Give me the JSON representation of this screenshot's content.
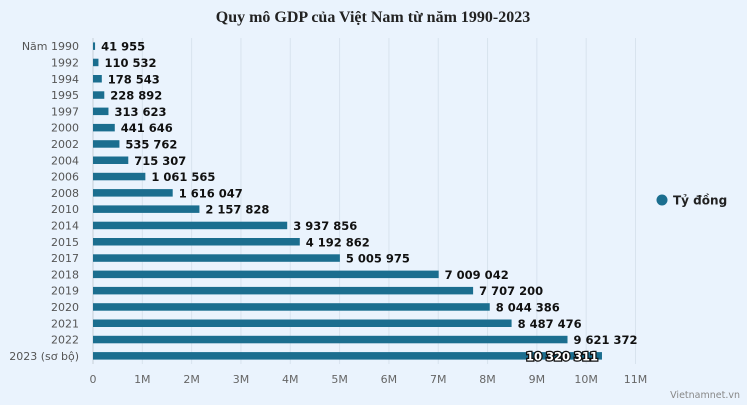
{
  "chart_data": {
    "type": "bar",
    "orientation": "horizontal",
    "title": "Quy mô GDP của Việt Nam từ năm 1990-2023",
    "xlabel": "",
    "ylabel": "",
    "categories": [
      "Năm 1990",
      "1992",
      "1994",
      "1995",
      "1997",
      "2000",
      "2002",
      "2004",
      "2006",
      "2008",
      "2010",
      "2014",
      "2015",
      "2017",
      "2018",
      "2019",
      "2020",
      "2021",
      "2022",
      "2023 (sơ bộ)"
    ],
    "series": [
      {
        "name": "Tỷ đồng",
        "color": "#1b6e8f",
        "values": [
          41955,
          110532,
          178543,
          228892,
          313623,
          441646,
          535762,
          715307,
          1061565,
          1616047,
          2157828,
          3937856,
          4192862,
          5005975,
          7009042,
          7707200,
          8044386,
          8487476,
          9621372,
          10320311
        ],
        "labels": [
          "41 955",
          "110 532",
          "178 543",
          "228 892",
          "313 623",
          "441 646",
          "535 762",
          "715 307",
          "1 061 565",
          "1 616 047",
          "2 157 828",
          "3 937 856",
          "4 192 862",
          "5 005 975",
          "7 009 042",
          "7 707 200",
          "8 044 386",
          "8 487 476",
          "9 621 372",
          "10 320 311"
        ]
      }
    ],
    "xlim": [
      0,
      11000000
    ],
    "xticks": [
      0,
      1000000,
      2000000,
      3000000,
      4000000,
      5000000,
      6000000,
      7000000,
      8000000,
      9000000,
      10000000,
      11000000
    ],
    "xtick_labels": [
      "0",
      "1M",
      "2M",
      "3M",
      "4M",
      "5M",
      "6M",
      "7M",
      "8M",
      "9M",
      "10M",
      "11M"
    ],
    "grid": true,
    "legend": {
      "position": "right",
      "entries": [
        "Tỷ đồng"
      ]
    },
    "credit": "Vietnamnet.vn"
  }
}
